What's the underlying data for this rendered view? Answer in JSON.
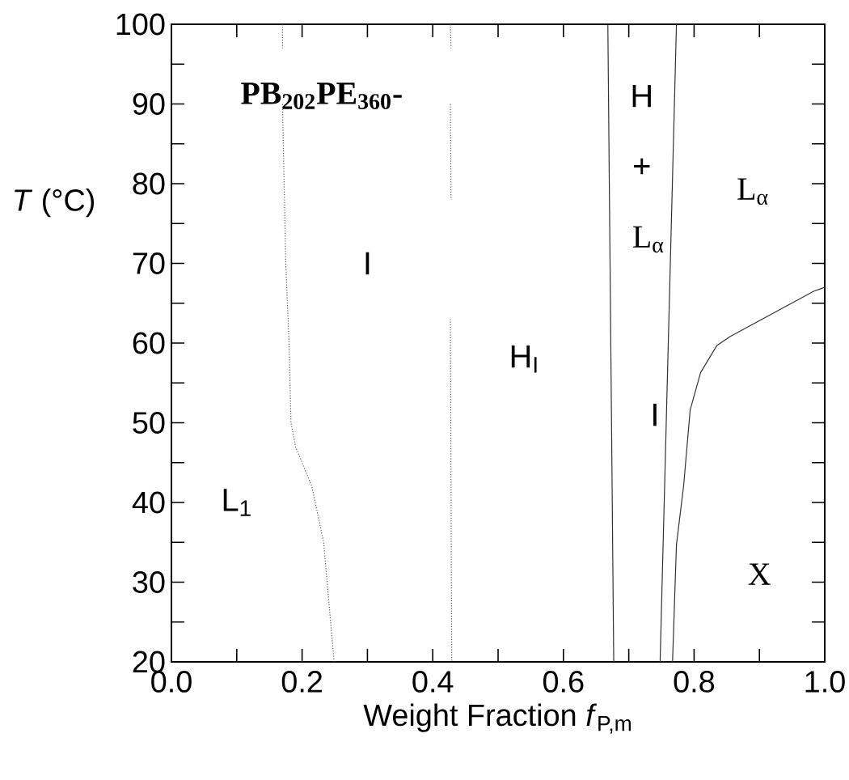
{
  "chart_data": {
    "type": "line",
    "xlabel": "Weight Fraction *f*$_{P,m}$",
    "ylabel": "*T* (°C)",
    "xlim": [
      0,
      1
    ],
    "ylim": [
      20,
      100
    ],
    "xticks": [
      {
        "value": 0,
        "label": "0.0"
      },
      {
        "value": 0.1,
        "label": null
      },
      {
        "value": 0.2,
        "label": "0.2"
      },
      {
        "value": 0.3,
        "label": null
      },
      {
        "value": 0.4,
        "label": "0.4"
      },
      {
        "value": 0.5,
        "label": null
      },
      {
        "value": 0.6,
        "label": "0.6"
      },
      {
        "value": 0.7,
        "label": null
      },
      {
        "value": 0.8,
        "label": "0.8"
      },
      {
        "value": 0.9,
        "label": null
      },
      {
        "value": 1,
        "label": "1.0"
      }
    ],
    "yticks": [
      20,
      {
        "value": 25,
        "label": null
      },
      30,
      {
        "value": 35,
        "label": null
      },
      40,
      {
        "value": 45,
        "label": null
      },
      50,
      {
        "value": 55,
        "label": null
      },
      60,
      {
        "value": 65,
        "label": null
      },
      70,
      {
        "value": 75,
        "label": null
      },
      80,
      {
        "value": 85,
        "label": null
      },
      90,
      {
        "value": 95,
        "label": null
      },
      100
    ],
    "marker": "none",
    "series": [
      {
        "color": "#555555",
        "line_style": "dotted",
        "x": [
          0.17,
          0.17,
          null,
          0.17,
          0.175,
          0.18,
          0.183,
          0.19,
          0.215,
          0.233,
          0.249
        ],
        "values": [
          100,
          97,
          null,
          90,
          70,
          60,
          50,
          47,
          42,
          35,
          20
        ]
      },
      {
        "color": "#555555",
        "line_style": "dotted",
        "x": [
          0.427,
          0.428
        ],
        "values": [
          100,
          97
        ]
      },
      {
        "color": "#555555",
        "line_style": "dotted",
        "x": [
          0.427,
          0.428
        ],
        "values": [
          90,
          78
        ]
      },
      {
        "color": "#555555",
        "line_style": "dotted",
        "x": [
          0.427,
          0.429
        ],
        "values": [
          63,
          20
        ]
      },
      {
        "color": "#333333",
        "line_style": "solid",
        "x": [
          0.668,
          0.677
        ],
        "values": [
          100,
          20
        ]
      },
      {
        "color": "#333333",
        "line_style": "solid",
        "x": [
          0.773,
          0.748
        ],
        "values": [
          100,
          20
        ]
      },
      {
        "color": "#333333",
        "line_style": "solid",
        "x": [
          0.767,
          0.773,
          0.784,
          0.794,
          0.81,
          0.835,
          0.855,
          0.983,
          1.0
        ],
        "values": [
          20,
          34.7,
          42.1,
          51.6,
          56.3,
          59.7,
          60.8,
          66.5,
          67
        ]
      }
    ],
    "annotations": [
      "PB$_{202}$PE$_{360}$-",
      "L$_{1}$",
      "I",
      "H$_{I}$",
      "H",
      "+",
      "L$_{α}$",
      "I",
      "L$_{α}$",
      "X"
    ]
  }
}
